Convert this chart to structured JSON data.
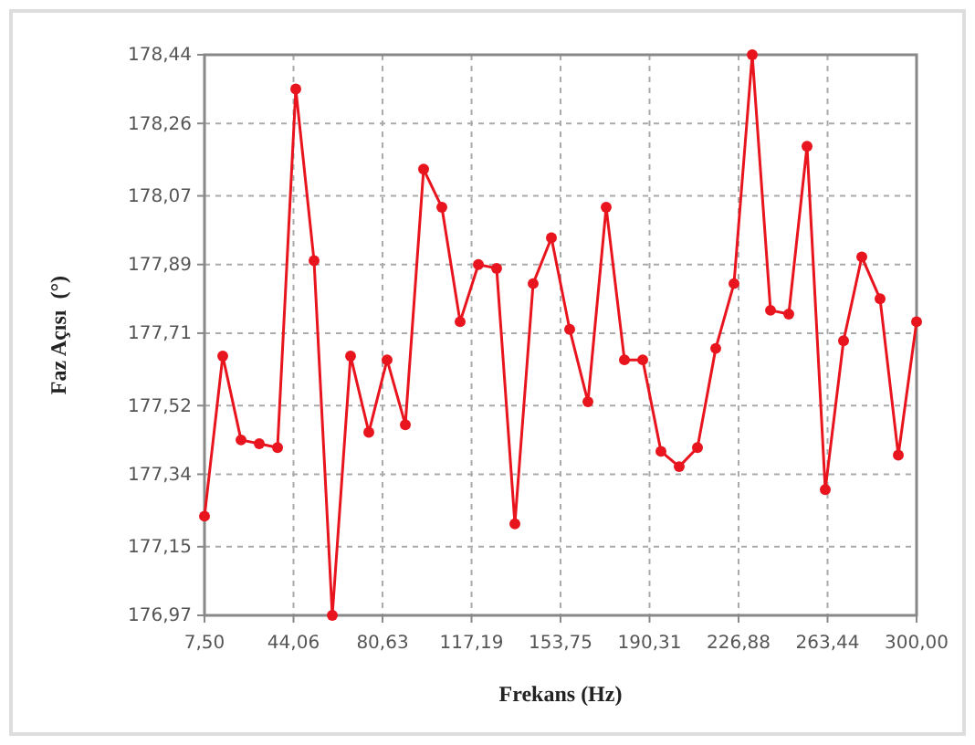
{
  "chart_data": {
    "type": "line",
    "xlabel": "Frekans (Hz)",
    "ylabel": "Faz Açısı  (°)",
    "x": [
      7.5,
      15,
      22.5,
      30,
      37.5,
      45,
      52.5,
      60,
      67.5,
      75,
      82.5,
      90,
      97.5,
      105,
      112.5,
      120,
      127.5,
      135,
      142.5,
      150,
      157.5,
      165,
      172.5,
      180,
      187.5,
      195,
      202.5,
      210,
      217.5,
      225,
      232.5,
      240,
      247.5,
      255,
      262.5,
      270,
      277.5,
      285,
      292.5,
      300
    ],
    "series": [
      {
        "color": "#e8141e",
        "values": [
          177.23,
          177.65,
          177.43,
          177.42,
          177.41,
          178.35,
          177.9,
          176.97,
          177.65,
          177.45,
          177.64,
          177.47,
          178.14,
          178.04,
          177.74,
          177.89,
          177.88,
          177.21,
          177.84,
          177.96,
          177.72,
          177.53,
          178.04,
          177.64,
          177.64,
          177.4,
          177.36,
          177.41,
          177.67,
          177.84,
          178.44,
          177.77,
          177.76,
          178.2,
          177.3,
          177.69,
          177.91,
          177.8,
          177.39,
          177.74
        ]
      }
    ],
    "xlim": [
      7.5,
      300
    ],
    "xticks": [
      {
        "value": 7.5,
        "label": "7,50"
      },
      {
        "value": 44.06,
        "label": "44,06"
      },
      {
        "value": 80.63,
        "label": "80,63"
      },
      {
        "value": 117.19,
        "label": "117,19"
      },
      {
        "value": 153.75,
        "label": "153,75"
      },
      {
        "value": 190.31,
        "label": "190,31"
      },
      {
        "value": 226.88,
        "label": "226,88"
      },
      {
        "value": 263.44,
        "label": "263,44"
      },
      {
        "value": 300,
        "label": "300,00"
      }
    ],
    "ylim": [
      176.97,
      178.44
    ],
    "yticks": [
      {
        "value": 176.97,
        "label": "176,97"
      },
      {
        "value": 177.15,
        "label": "177,15"
      },
      {
        "value": 177.34,
        "label": "177,34"
      },
      {
        "value": 177.52,
        "label": "177,52"
      },
      {
        "value": 177.71,
        "label": "177,71"
      },
      {
        "value": 177.89,
        "label": "177,89"
      },
      {
        "value": 178.07,
        "label": "178,07"
      },
      {
        "value": 178.26,
        "label": "178,26"
      },
      {
        "value": 178.44,
        "label": "178,44"
      }
    ],
    "grid": true,
    "marker": "circle",
    "line_style": "solid"
  }
}
